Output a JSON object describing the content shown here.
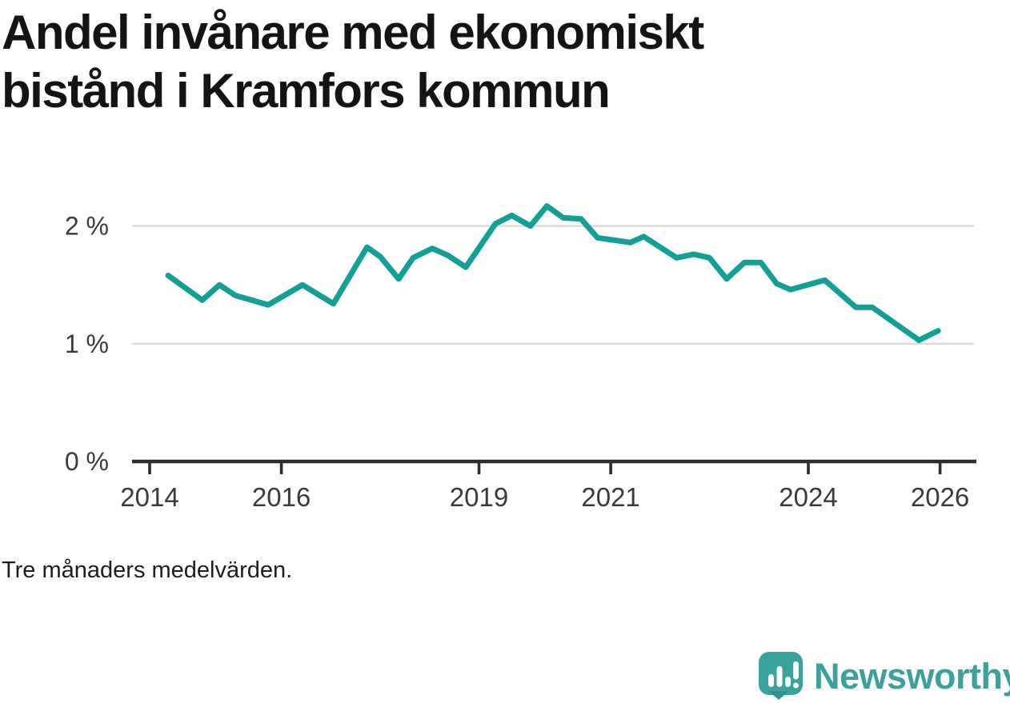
{
  "header": {
    "title_lines": [
      "Andel invånare med ekonomiskt",
      "bistånd i Kramfors kommun"
    ]
  },
  "footer": {
    "note": "Tre månaders medelvärden.",
    "brand": {
      "name": "Newsworthy",
      "icon": "newsworthy-logo-icon",
      "brand_color": "#3CA19D"
    }
  },
  "colors": {
    "line": "#12A096",
    "grid": "#DCDCDC",
    "axis": "#2D2D2D",
    "tick_label": "#3A3A3A",
    "title": "#141414"
  },
  "chart_data": {
    "type": "line",
    "title": "Andel invånare med ekonomiskt bistånd i Kramfors kommun",
    "note": "Tre månaders medelvärden.",
    "unit": "percent",
    "xlabel": "",
    "ylabel": "",
    "legend": "none",
    "grid": "horizontal-only",
    "x_ticks": [
      2014,
      2016,
      2019,
      2021,
      2024,
      2026
    ],
    "x_tick_labels": [
      "2014",
      "2016",
      "2019",
      "2021",
      "2024",
      "2026"
    ],
    "y_ticks": [
      0,
      1,
      2
    ],
    "y_tick_labels": [
      "0 %",
      "1 %",
      "2 %"
    ],
    "xlim": [
      2013.73,
      2026.55
    ],
    "ylim": [
      0,
      2.35
    ],
    "line_color": "#12A096",
    "series": [
      {
        "name": "Andel invånare med ekonomiskt bistånd (%)",
        "points": [
          [
            2014.28,
            1.58
          ],
          [
            2014.8,
            1.37
          ],
          [
            2015.06,
            1.5
          ],
          [
            2015.3,
            1.41
          ],
          [
            2015.8,
            1.33
          ],
          [
            2016.32,
            1.5
          ],
          [
            2016.79,
            1.34
          ],
          [
            2017.3,
            1.82
          ],
          [
            2017.5,
            1.74
          ],
          [
            2017.78,
            1.55
          ],
          [
            2018.0,
            1.73
          ],
          [
            2018.29,
            1.81
          ],
          [
            2018.53,
            1.75
          ],
          [
            2018.8,
            1.65
          ],
          [
            2019.25,
            2.02
          ],
          [
            2019.5,
            2.09
          ],
          [
            2019.78,
            2.0
          ],
          [
            2020.03,
            2.17
          ],
          [
            2020.28,
            2.07
          ],
          [
            2020.55,
            2.06
          ],
          [
            2020.8,
            1.9
          ],
          [
            2021.05,
            1.88
          ],
          [
            2021.3,
            1.86
          ],
          [
            2021.5,
            1.91
          ],
          [
            2022.0,
            1.73
          ],
          [
            2022.26,
            1.76
          ],
          [
            2022.5,
            1.73
          ],
          [
            2022.76,
            1.55
          ],
          [
            2023.03,
            1.69
          ],
          [
            2023.28,
            1.69
          ],
          [
            2023.52,
            1.51
          ],
          [
            2023.73,
            1.46
          ],
          [
            2024.25,
            1.54
          ],
          [
            2024.72,
            1.31
          ],
          [
            2024.97,
            1.31
          ],
          [
            2025.68,
            1.03
          ],
          [
            2025.97,
            1.11
          ]
        ]
      }
    ]
  }
}
